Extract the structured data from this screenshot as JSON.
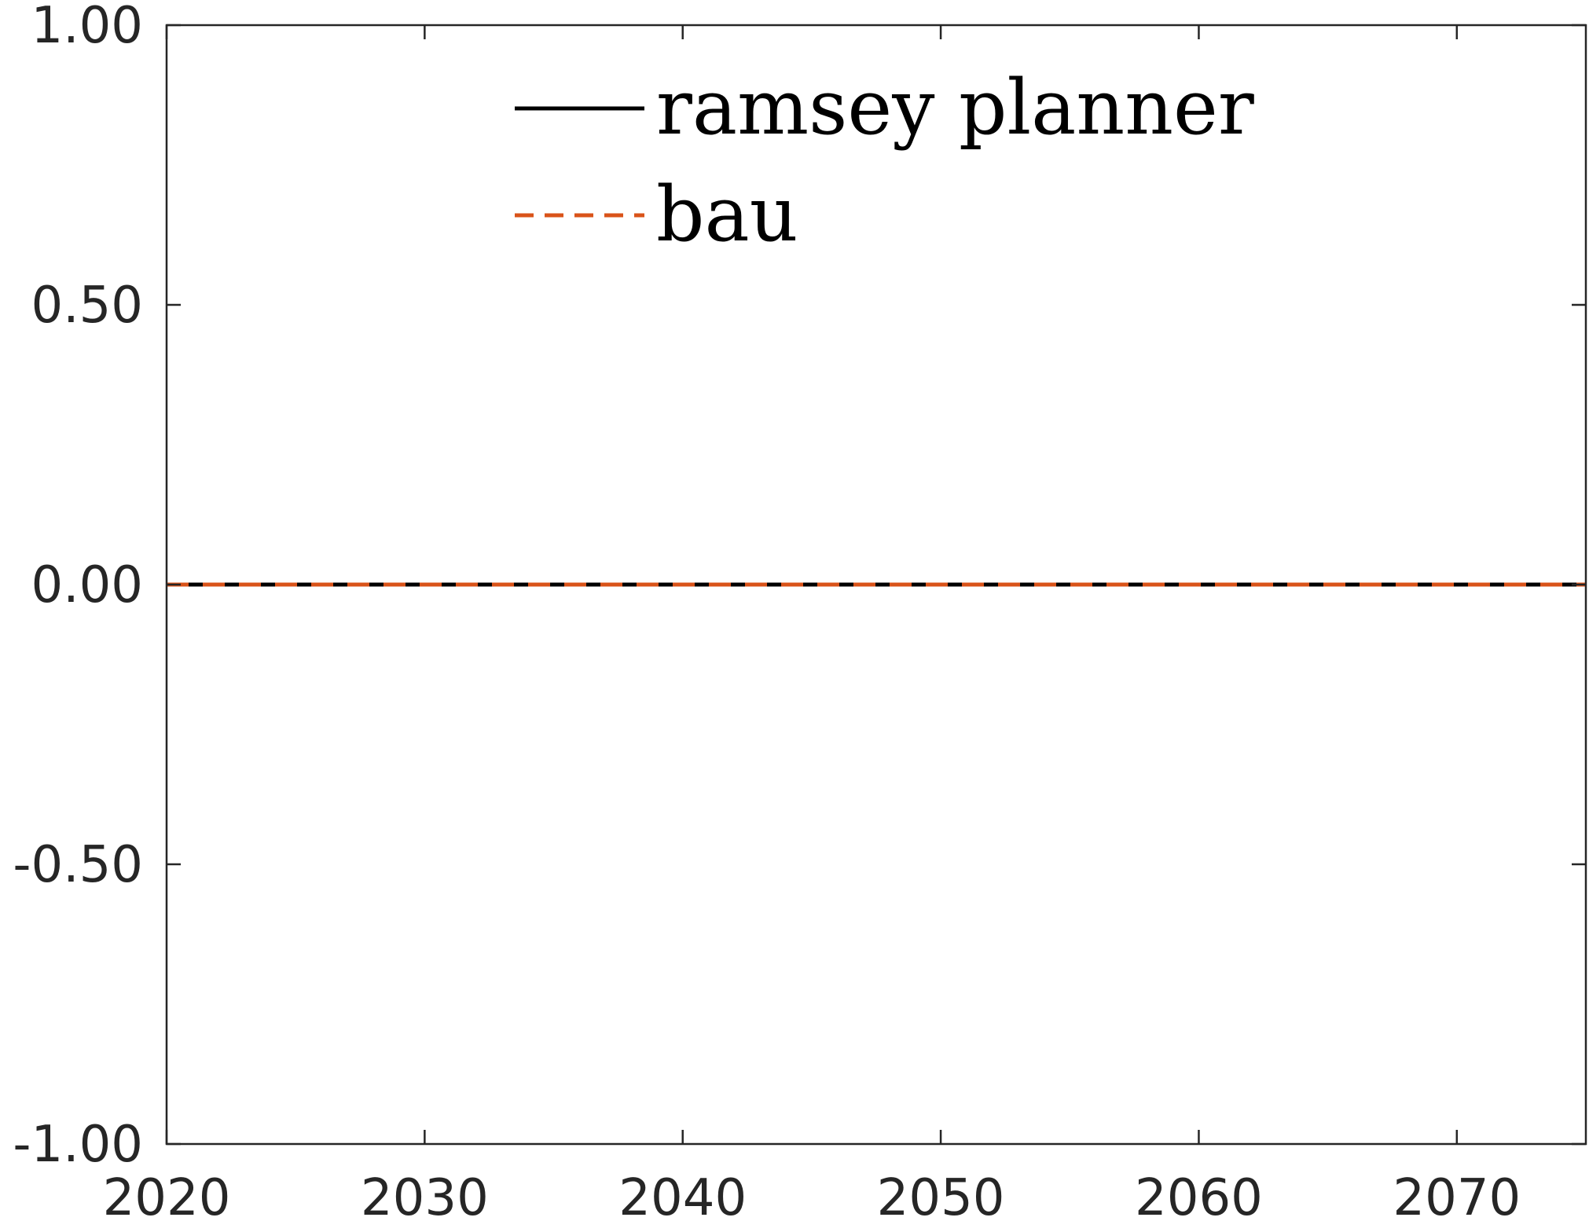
{
  "chart_data": {
    "type": "line",
    "title": "",
    "xlabel": "",
    "ylabel": "",
    "xlim": [
      2020,
      2075
    ],
    "ylim": [
      -1.0,
      1.0
    ],
    "x_ticks": [
      2020,
      2030,
      2040,
      2050,
      2060,
      2070
    ],
    "x_tick_labels": [
      "2020",
      "2030",
      "2040",
      "2050",
      "2060",
      "2070"
    ],
    "y_ticks": [
      -1.0,
      -0.5,
      0.0,
      0.5,
      1.0
    ],
    "y_tick_labels": [
      "-1.00",
      "-0.50",
      "0.00",
      "0.50",
      "1.00"
    ],
    "grid": false,
    "legend_position": "top-center",
    "x": [
      2020,
      2025,
      2030,
      2035,
      2040,
      2045,
      2050,
      2055,
      2060,
      2065,
      2070,
      2075
    ],
    "series": [
      {
        "name": "ramsey planner",
        "style": "solid",
        "color": "#000000",
        "values": [
          0,
          0,
          0,
          0,
          0,
          0,
          0,
          0,
          0,
          0,
          0,
          0
        ]
      },
      {
        "name": "bau",
        "style": "dashed",
        "color": "#D95319",
        "values": [
          0,
          0,
          0,
          0,
          0,
          0,
          0,
          0,
          0,
          0,
          0,
          0
        ]
      }
    ]
  }
}
